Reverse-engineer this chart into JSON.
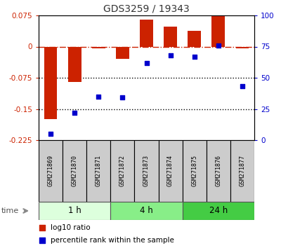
{
  "title": "GDS3259 / 19343",
  "samples": [
    "GSM271869",
    "GSM271870",
    "GSM271871",
    "GSM271872",
    "GSM271873",
    "GSM271874",
    "GSM271875",
    "GSM271876",
    "GSM271877"
  ],
  "log10_ratio": [
    -0.175,
    -0.085,
    -0.005,
    -0.03,
    0.065,
    0.048,
    0.038,
    0.075,
    -0.005
  ],
  "percentile_rank": [
    5,
    22,
    35,
    34,
    62,
    68,
    67,
    76,
    43
  ],
  "ylim_left": [
    -0.225,
    0.075
  ],
  "ylim_right": [
    0,
    100
  ],
  "yticks_left": [
    0.075,
    0,
    -0.075,
    -0.15,
    -0.225
  ],
  "yticks_right": [
    100,
    75,
    50,
    25,
    0
  ],
  "bar_color": "#cc2200",
  "dot_color": "#0000cc",
  "zero_line_color": "#cc2200",
  "dotted_line_color": "#000000",
  "groups": [
    {
      "label": "1 h",
      "start": 0,
      "end": 3,
      "color": "#ddffdd"
    },
    {
      "label": "4 h",
      "start": 3,
      "end": 6,
      "color": "#88ee88"
    },
    {
      "label": "24 h",
      "start": 6,
      "end": 9,
      "color": "#44cc44"
    }
  ],
  "time_label": "time",
  "legend_bar_label": "log10 ratio",
  "legend_dot_label": "percentile rank within the sample",
  "background_color": "#ffffff",
  "fig_width": 4.0,
  "fig_height": 3.54,
  "dpi": 100
}
